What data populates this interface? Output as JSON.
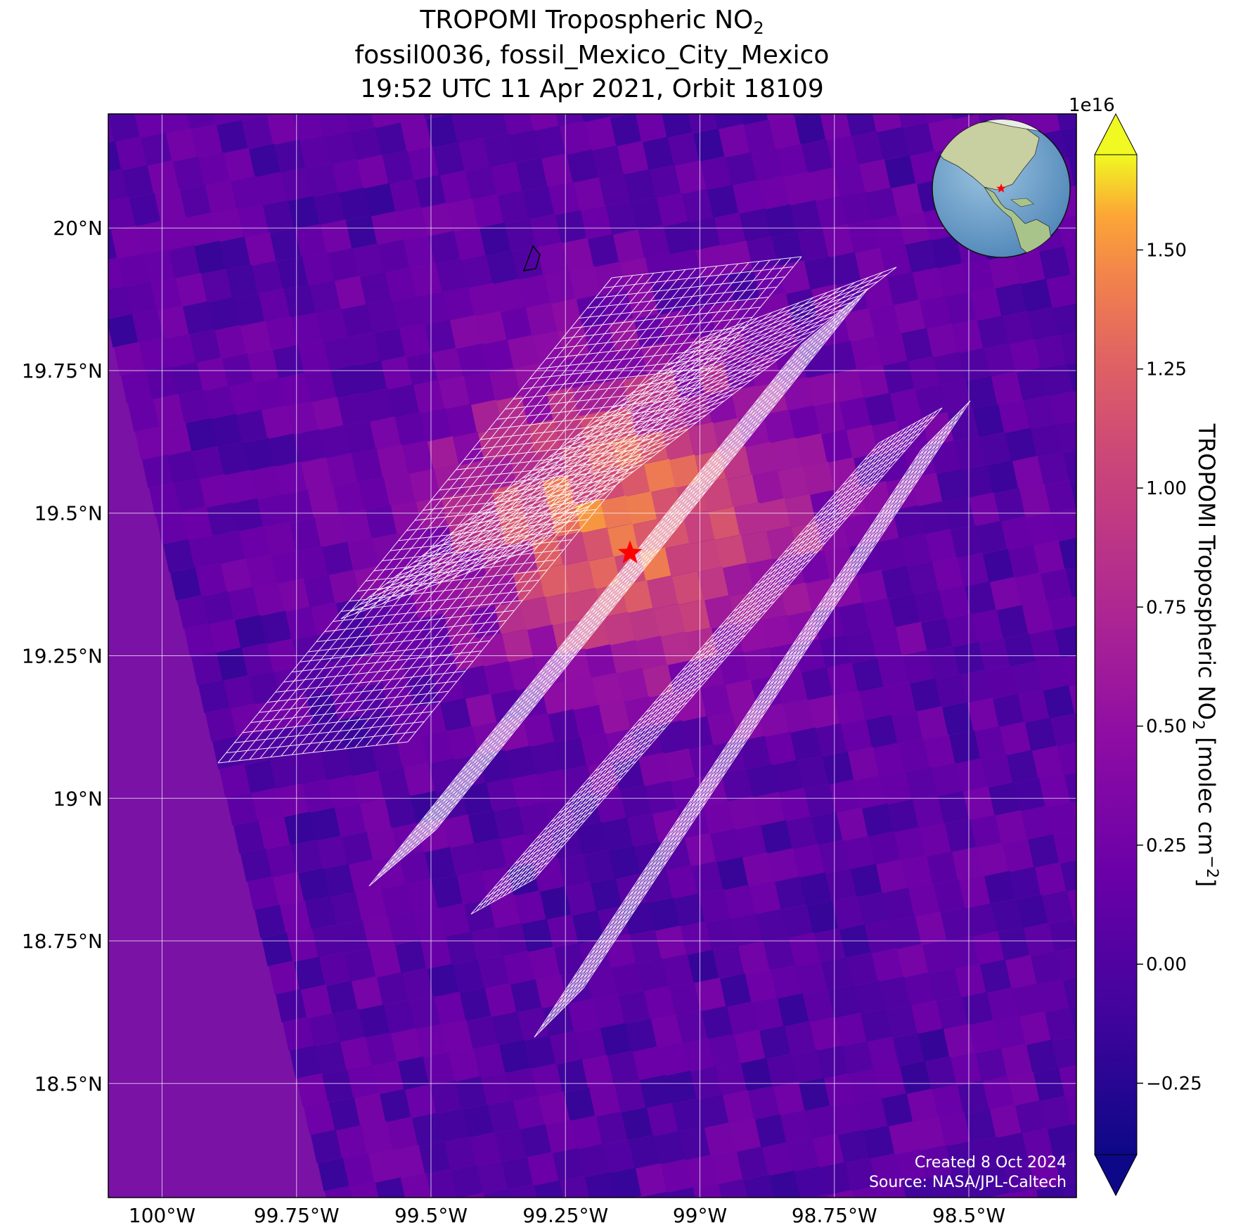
{
  "title": {
    "line1": "TROPOMI Tropospheric NO",
    "line1_sub": "2",
    "line2": "fossil0036, fossil_Mexico_City_Mexico",
    "line3": "19:52 UTC 11 Apr 2021, Orbit 18109"
  },
  "map": {
    "lon_range": [
      -100.1,
      -98.3
    ],
    "lat_range": [
      18.3,
      20.2
    ],
    "lon_ticks": [
      {
        "value": -100.0,
        "label": "100°W"
      },
      {
        "value": -99.75,
        "label": "99.75°W"
      },
      {
        "value": -99.5,
        "label": "99.5°W"
      },
      {
        "value": -99.25,
        "label": "99.25°W"
      },
      {
        "value": -99.0,
        "label": "99°W"
      },
      {
        "value": -98.75,
        "label": "98.75°W"
      },
      {
        "value": -98.5,
        "label": "98.5°W"
      }
    ],
    "lat_ticks": [
      {
        "value": 20.0,
        "label": "20°N"
      },
      {
        "value": 19.75,
        "label": "19.75°N"
      },
      {
        "value": 19.5,
        "label": "19.5°N"
      },
      {
        "value": 19.25,
        "label": "19.25°N"
      },
      {
        "value": 19.0,
        "label": "19°N"
      },
      {
        "value": 18.75,
        "label": "18.75°N"
      },
      {
        "value": 18.5,
        "label": "18.5°N"
      }
    ],
    "grid": true,
    "target_marker": {
      "lon": -99.13,
      "lat": 19.43,
      "color": "#ff0000"
    },
    "background_color": "#7a12a6",
    "credits": {
      "line1": "Created 8 Oct 2024",
      "line2": "Source: NASA/JPL-Caltech"
    }
  },
  "colorbar": {
    "scale_label": "1e16",
    "label_main": "TROPOMI Tropospheric NO",
    "label_sub": "2",
    "label_units_pre": " [molec cm",
    "label_units_sup": "−2",
    "label_units_post": "]",
    "vmin": -0.4,
    "vmax": 1.7,
    "ticks": [
      {
        "value": -0.25,
        "label": "−0.25"
      },
      {
        "value": 0.0,
        "label": "0.00"
      },
      {
        "value": 0.25,
        "label": "0.25"
      },
      {
        "value": 0.5,
        "label": "0.50"
      },
      {
        "value": 0.75,
        "label": "0.75"
      },
      {
        "value": 1.0,
        "label": "1.00"
      },
      {
        "value": 1.25,
        "label": "1.25"
      },
      {
        "value": 1.5,
        "label": "1.50"
      }
    ],
    "colormap": "plasma",
    "extend": "both"
  }
}
